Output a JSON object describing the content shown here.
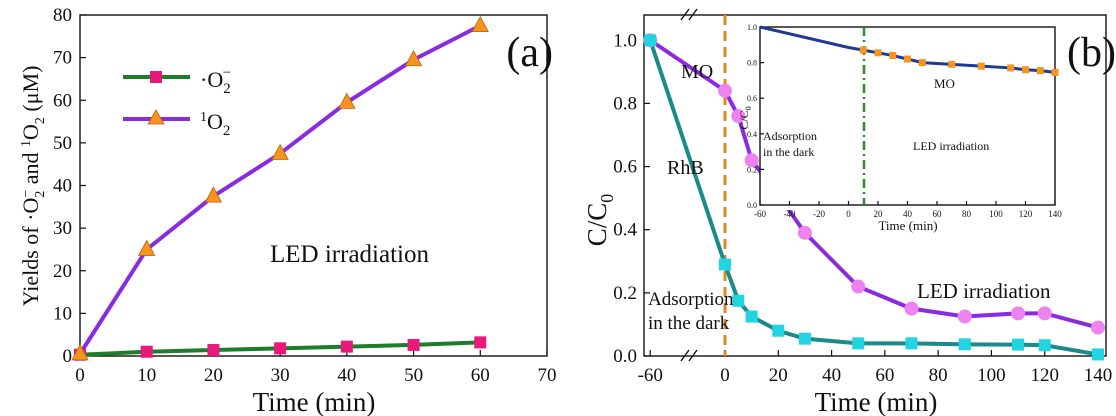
{
  "chart_data": [
    {
      "panel": "(a)",
      "type": "line",
      "xlabel": "Time (min)",
      "ylabel": "Yields of ·O2⁻ and ¹O2 (μM)",
      "xlim": [
        0,
        70
      ],
      "ylim": [
        0,
        80
      ],
      "xticks": [
        0,
        10,
        20,
        30,
        40,
        50,
        60,
        70
      ],
      "yticks": [
        0,
        10,
        20,
        30,
        40,
        50,
        60,
        70,
        80
      ],
      "annotation": "LED irradiation",
      "legend_position": "top-left",
      "series": [
        {
          "name": "·O2⁻",
          "color": "#1e7d2b",
          "marker": "square",
          "marker_color": "#e8197a",
          "x": [
            0,
            10,
            20,
            30,
            40,
            50,
            60
          ],
          "values": [
            0.3,
            1.0,
            1.4,
            1.8,
            2.2,
            2.6,
            3.2
          ]
        },
        {
          "name": "¹O2",
          "color": "#8a2be2",
          "marker": "triangle",
          "marker_color": "#f7941d",
          "x": [
            0,
            10,
            20,
            30,
            40,
            50,
            60
          ],
          "values": [
            0.5,
            25,
            37.5,
            47.5,
            59.5,
            69.5,
            77.5
          ]
        }
      ]
    },
    {
      "panel": "(b)",
      "type": "line",
      "xlabel": "Time (min)",
      "ylabel": "C/C0",
      "xlim": [
        -65,
        145
      ],
      "ylim": [
        0,
        1.08
      ],
      "xticks": [
        -60,
        0,
        20,
        40,
        60,
        80,
        100,
        120,
        140
      ],
      "yticks": [
        0.0,
        0.2,
        0.4,
        0.6,
        0.8,
        1.0
      ],
      "annotations": [
        "MO",
        "RhB",
        "Adsorption",
        "in the dark",
        "LED irradiation"
      ],
      "series": [
        {
          "name": "MO",
          "color": "#8a2be2",
          "marker_color": "#ee82ee",
          "marker": "circle",
          "x": [
            -60,
            0,
            5,
            10,
            20,
            30,
            50,
            70,
            90,
            110,
            120,
            140
          ],
          "values": [
            1.0,
            0.84,
            0.76,
            0.62,
            0.51,
            0.39,
            0.22,
            0.15,
            0.125,
            0.135,
            0.135,
            0.09
          ]
        },
        {
          "name": "RhB",
          "color": "#1b8a8a",
          "marker_color": "#22d3e0",
          "marker": "square",
          "x": [
            -60,
            0,
            5,
            10,
            20,
            30,
            50,
            70,
            90,
            110,
            120,
            140
          ],
          "values": [
            1.0,
            0.29,
            0.175,
            0.125,
            0.08,
            0.055,
            0.04,
            0.04,
            0.037,
            0.036,
            0.034,
            0.005
          ]
        }
      ],
      "inset": {
        "type": "line",
        "xlabel": "Time (min)",
        "ylabel": "C/C0",
        "xlim": [
          -60,
          140
        ],
        "ylim": [
          0,
          1.0
        ],
        "xticks": [
          -60,
          -40,
          -20,
          0,
          20,
          40,
          60,
          80,
          100,
          120,
          140
        ],
        "yticks": [
          0.0,
          0.2,
          0.4,
          0.6,
          0.8,
          1.0
        ],
        "annotations": [
          "MO",
          "Adsorption",
          "in the dark",
          "LED irradiation"
        ],
        "series": [
          {
            "name": "MO",
            "color": "#1f3a93",
            "marker_color": "#f7941d",
            "x": [
              -60,
              0,
              10,
              20,
              30,
              40,
              50,
              70,
              90,
              110,
              120,
              130,
              140
            ],
            "values": [
              1.0,
              0.885,
              0.87,
              0.855,
              0.84,
              0.82,
              0.8,
              0.79,
              0.78,
              0.77,
              0.76,
              0.755,
              0.745
            ]
          }
        ]
      }
    }
  ]
}
